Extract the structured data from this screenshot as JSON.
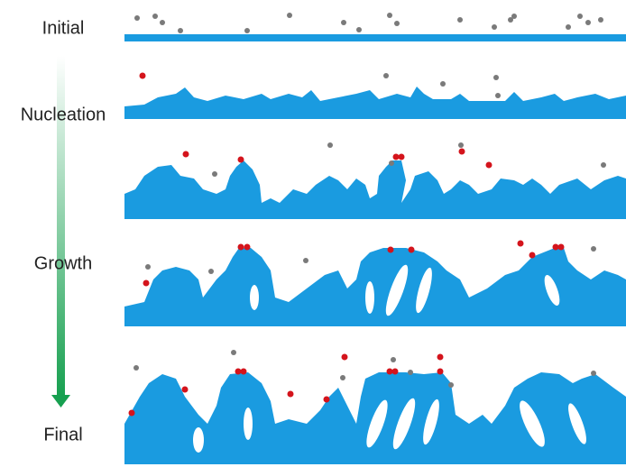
{
  "stages": [
    {
      "label": "Initial"
    },
    {
      "label": "Nucleation"
    },
    {
      "label": "Growth"
    },
    {
      "label": "Final"
    }
  ]
}
